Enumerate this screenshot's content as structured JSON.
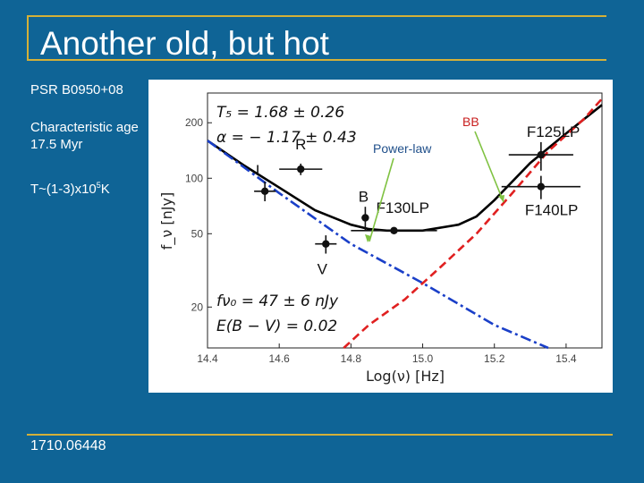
{
  "title": "Another old, but hot",
  "sidebar": {
    "psr_name": "PSR B0950+08",
    "age_text": "Characteristic age 17.5 Myr",
    "temp_prefix": "T~(1-3)x10",
    "temp_exp": "5",
    "temp_suffix": "K",
    "arxiv_id": "1710.06448"
  },
  "colors": {
    "background": "#0f6496",
    "accent_lines": "#d4b038",
    "arrow": "#7fc241",
    "bb_label": "#c81e1e",
    "powerlaw_label": "#1f4f8a"
  },
  "chart_data": {
    "type": "line",
    "xlabel": "Log(ν) [Hz]",
    "ylabel": "f_ν [nJy]",
    "xlim": [
      14.4,
      15.5
    ],
    "ylim": [
      12,
      290
    ],
    "y_scale": "log",
    "x_ticks": [
      14.4,
      14.6,
      14.8,
      15.0,
      15.2,
      15.4
    ],
    "x_tick_labels": [
      "14.4",
      "14.6",
      "14.8",
      "15.0",
      "15.2",
      "15.4"
    ],
    "y_ticks": [
      20,
      50,
      100,
      200
    ],
    "y_tick_labels": [
      "20",
      "50",
      "100",
      "200"
    ],
    "series": [
      {
        "name": "total",
        "color": "#000000",
        "style": "solid",
        "x": [
          14.4,
          14.5,
          14.6,
          14.7,
          14.8,
          14.85,
          14.9,
          15.0,
          15.1,
          15.15,
          15.2,
          15.3,
          15.4,
          15.5
        ],
        "y": [
          160,
          118,
          89,
          67,
          56,
          53,
          52,
          52,
          56,
          62,
          76,
          121,
          175,
          250
        ]
      },
      {
        "name": "Power-law",
        "color": "#1a3fc8",
        "style": "dashdot",
        "x": [
          14.4,
          14.6,
          14.8,
          15.0,
          15.2,
          15.35
        ],
        "y": [
          160,
          83,
          44,
          27,
          16,
          12
        ]
      },
      {
        "name": "BB",
        "color": "#e02020",
        "style": "dashed",
        "x": [
          14.78,
          14.85,
          14.95,
          15.05,
          15.15,
          15.25,
          15.35,
          15.45,
          15.5
        ],
        "y": [
          12,
          16,
          22,
          33,
          50,
          83,
          140,
          210,
          270
        ]
      }
    ],
    "points": [
      {
        "label": "I",
        "x": 14.56,
        "y": 85,
        "xerr": 0.03,
        "yerr": [
          75,
          96
        ]
      },
      {
        "label": "R",
        "x": 14.66,
        "y": 112,
        "xerr": 0.06,
        "yerr": [
          104,
          120
        ]
      },
      {
        "label": "B",
        "x": 14.84,
        "y": 61,
        "xerr": 0.01,
        "yerr": [
          52,
          70
        ]
      },
      {
        "label": "V",
        "x": 14.73,
        "y": 44,
        "xerr": 0.03,
        "yerr": [
          39,
          49
        ]
      },
      {
        "label": "F130LP",
        "x": 14.92,
        "y": 52,
        "xerr": 0.12,
        "yerr": [
          50,
          54
        ]
      },
      {
        "label": "F125LP",
        "x": 15.33,
        "y": 134,
        "xerr": 0.09,
        "yerr": [
          110,
          157
        ]
      },
      {
        "label": "F140LP",
        "x": 15.33,
        "y": 90,
        "xerr": 0.11,
        "yerr": [
          77,
          103
        ]
      }
    ],
    "annotations": [
      {
        "id": "T5",
        "text": "T₅ = 1.68 ± 0.26"
      },
      {
        "id": "alpha",
        "text": "α = − 1.17 ± 0.43"
      },
      {
        "id": "fnu0",
        "text": "fν₀ = 47 ± 6 nJy"
      },
      {
        "id": "ebv",
        "text": "E(B − V) = 0.02"
      }
    ],
    "callouts": {
      "bb": "BB",
      "powerlaw": "Power-law"
    }
  }
}
